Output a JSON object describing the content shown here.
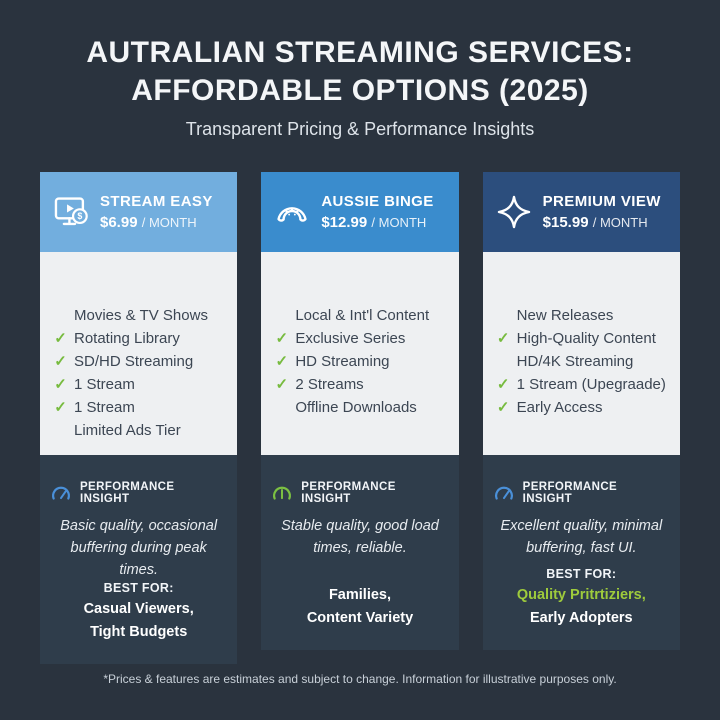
{
  "page": {
    "title_line1": "AUTRALIAN STREAMING SERVICES:",
    "title_line2": "AFFORDABLE OPTIONS (2025)",
    "subtitle": "Transparent Pricing & Performance Insights",
    "footer": "*Prices & features are estimates and subject to change. Information for illustrative purposes only."
  },
  "colors": {
    "background": "#2a333e",
    "card_features_bg": "#eef0f2",
    "card_bottom_bg": "#2f3d4b",
    "check_green": "#77bb3f",
    "highlight_green": "#9ecb3c",
    "gauge_blue": "#4a90d9",
    "gauge_green": "#7cc142"
  },
  "cards": [
    {
      "name": "STREAM EASY",
      "price": "$6.99",
      "period": "/ MONTH",
      "icon": "tv-play-dollar-icon",
      "header_color": "#72aede",
      "features": [
        {
          "text": "Movies & TV Shows",
          "check": false
        },
        {
          "text": "Rotating Library",
          "check": true
        },
        {
          "text": "SD/HD Streaming",
          "check": true
        },
        {
          "text": "1 Stream",
          "check": true
        },
        {
          "text": "1 Stream",
          "check": true
        },
        {
          "text": "Limited Ads Tier",
          "check": false
        }
      ],
      "insight_label": "PERFORMANCE INSIGHT",
      "insight_text": "Basic quality, occasional buffering during peak times.",
      "gauge": {
        "color": "#4a90d9",
        "needle_angle": 35
      },
      "best_for_label": "BEST FOR:",
      "best_for_lines": [
        {
          "text": "Casual Viewers,",
          "color": "#ffffff"
        },
        {
          "text": "Tight Budgets",
          "color": "#ffffff"
        }
      ]
    },
    {
      "name": "AUSSIE BINGE",
      "price": "$12.99",
      "period": "/ MONTH",
      "icon": "boomerang-icon",
      "header_color": "#3a8ccd",
      "features": [
        {
          "text": "Local & Int'l Content",
          "check": false
        },
        {
          "text": "Exclusive Series",
          "check": true
        },
        {
          "text": "HD Streaming",
          "check": true
        },
        {
          "text": "2 Streams",
          "check": true
        },
        {
          "text": "Offline Downloads",
          "check": false
        }
      ],
      "insight_label": "PERFORMANCE INSIGHT",
      "insight_text": "Stable quality, good load times, reliable.",
      "gauge": {
        "color": "#7cc142",
        "needle_angle": 0
      },
      "best_for_label": "",
      "best_for_lines": [
        {
          "text": "Families,",
          "color": "#ffffff"
        },
        {
          "text": "Content Variety",
          "color": "#ffffff"
        }
      ]
    },
    {
      "name": "PREMIUM VIEW",
      "price": "$15.99",
      "period": "/ MONTH",
      "icon": "sparkle-icon",
      "header_color": "#2c4e7d",
      "features": [
        {
          "text": "New Releases",
          "check": false
        },
        {
          "text": "High-Quality Content",
          "check": true
        },
        {
          "text": "HD/4K Streaming",
          "check": false
        },
        {
          "text": "1 Stream (Upegraade)",
          "check": true
        },
        {
          "text": "Early Access",
          "check": true
        }
      ],
      "insight_label": "PERFORMANCE INSIGHT",
      "insight_text": "Excellent quality, minimal buffering, fast UI.",
      "gauge": {
        "color": "#4a90d9",
        "needle_angle": 35
      },
      "best_for_label": "BEST FOR:",
      "best_for_lines": [
        {
          "text": "Quality Pritrtiziers,",
          "color": "#9ecb3c"
        },
        {
          "text": "Early Adopters",
          "color": "#ffffff"
        }
      ]
    }
  ]
}
